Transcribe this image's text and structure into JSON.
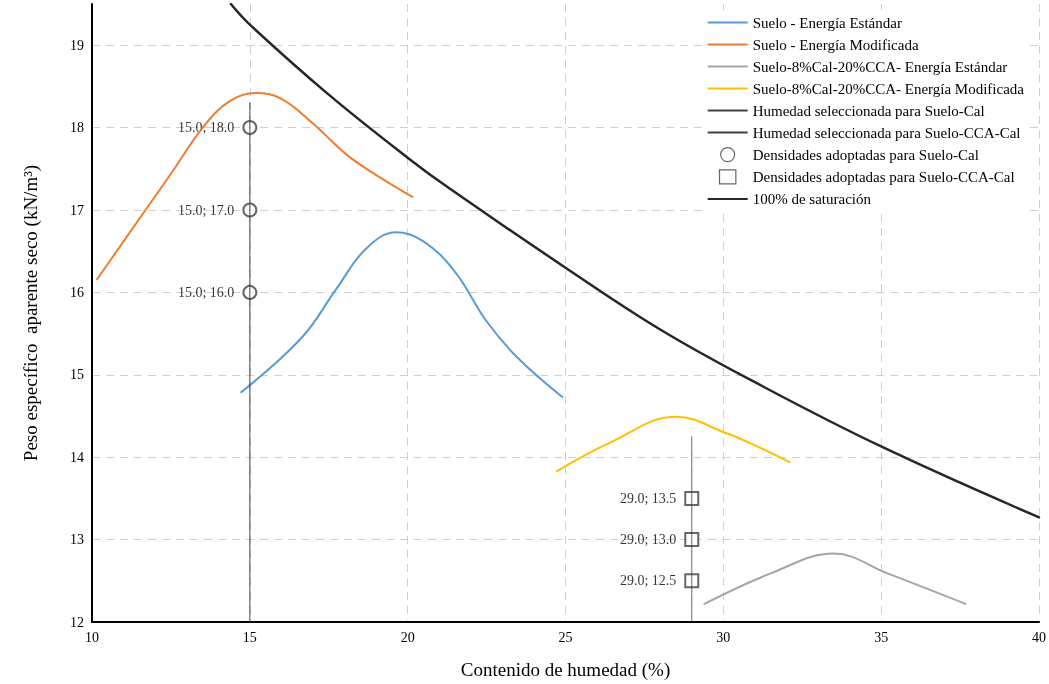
{
  "chart_data": {
    "type": "line",
    "xlabel": "Contenido de humedad (%)",
    "ylabel": "Peso específico  aparente seco (kN/m³)",
    "xlim": [
      10,
      40
    ],
    "xticks": [
      10,
      15,
      20,
      25,
      30,
      35,
      40
    ],
    "ylim": [
      12,
      19.5
    ],
    "yticks": [
      12,
      13,
      14,
      15,
      16,
      17,
      18,
      19
    ],
    "grid": true,
    "legend": "top right",
    "series": [
      {
        "name": "Suelo - Energía Estándar",
        "color": "#5b9bd5",
        "x": [
          14.73,
          16.64,
          17.72,
          18.68,
          19.64,
          20.5,
          21.5,
          22.5,
          23.5,
          24.9
        ],
        "values": [
          14.79,
          15.45,
          16.03,
          16.53,
          16.73,
          16.62,
          16.25,
          15.65,
          15.2,
          14.73
        ]
      },
      {
        "name": "Suelo - Energía Modificada",
        "color": "#ed7d31",
        "x": [
          10.16,
          12.5,
          13.57,
          14.4,
          15.17,
          16,
          17,
          18.24,
          20.15
        ],
        "values": [
          16.16,
          17.44,
          18.03,
          18.33,
          18.42,
          18.35,
          18.05,
          17.62,
          17.16
        ]
      },
      {
        "name": "Suelo-8%Cal-20%CCA- Energía Estándar",
        "color": "#a5a5a5",
        "x": [
          29.4,
          31.5,
          33.5,
          35.2,
          37.67
        ],
        "values": [
          12.22,
          12.59,
          12.83,
          12.59,
          12.22
        ]
      },
      {
        "name": "Suelo-8%Cal-20%CCA- Energía Modificada",
        "color": "#ffc000",
        "x": [
          24.73,
          26.38,
          28.51,
          30.1,
          30.85,
          32.1
        ],
        "values": [
          13.83,
          14.17,
          14.49,
          14.29,
          14.17,
          13.94
        ]
      },
      {
        "name": "Humedad seleccionada para Suelo-Cal",
        "color": "#404040",
        "line_style": "solid",
        "x": [
          15,
          15
        ],
        "values": [
          12,
          18.3
        ]
      },
      {
        "name": "Humedad seleccionada para Suelo-CCA-Cal",
        "color": "#404040",
        "line_style": "dotted",
        "x": [
          29,
          29
        ],
        "values": [
          12,
          14.25
        ]
      },
      {
        "name": "Densidades adoptadas para Suelo-Cal",
        "type": "scatter",
        "marker": "circle",
        "color": "#404040",
        "x": [
          15,
          15,
          15
        ],
        "values": [
          18,
          17,
          16
        ],
        "value_labels": [
          "15.0; 18.0",
          "15.0; 17.0",
          "15.0; 16.0"
        ]
      },
      {
        "name": "Densidades adoptadas para Suelo-CCA-Cal",
        "type": "scatter",
        "marker": "square",
        "color": "#404040",
        "x": [
          29,
          29,
          29
        ],
        "values": [
          13.5,
          13,
          12.5
        ],
        "value_labels": [
          "29.0; 13.5",
          "29.0; 13.0",
          "29.0; 12.5"
        ]
      },
      {
        "name": "100% de saturación",
        "color": "#262626",
        "x": [
          14.4,
          15,
          17.5,
          20.05,
          21.33,
          25,
          28,
          31,
          35,
          40
        ],
        "values": [
          19.5,
          19.25,
          18.4,
          17.62,
          17.26,
          16.3,
          15.55,
          14.91,
          14.13,
          13.27
        ]
      }
    ]
  }
}
